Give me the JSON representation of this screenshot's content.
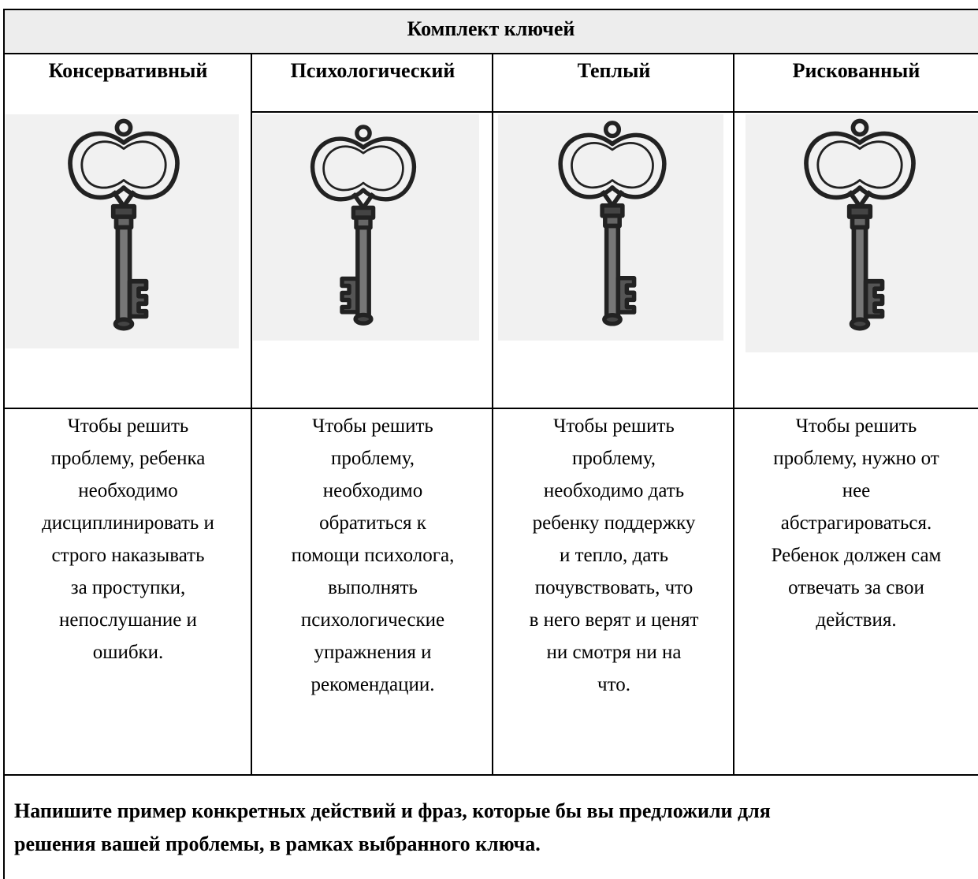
{
  "table": {
    "title": "Комплект ключей",
    "columns": [
      {
        "heading": "Консервативный",
        "lines": [
          "Чтобы решить",
          "проблему, ребенка",
          "необходимо",
          "дисциплинировать и",
          "строго наказывать",
          "за проступки,",
          "непослушание и",
          "ошибки."
        ]
      },
      {
        "heading": "Психологический",
        "lines": [
          "Чтобы решить",
          "проблему,",
          "необходимо",
          "обратиться к",
          "помощи психолога,",
          "выполнять",
          "психологические",
          "упражнения и",
          "рекомендации."
        ]
      },
      {
        "heading": "Теплый",
        "lines": [
          "Чтобы решить",
          "проблему,",
          "необходимо дать",
          "ребенку поддержку",
          "и тепло, дать",
          "почувствовать, что",
          "в него верят и ценят",
          "ни смотря ни на",
          "что."
        ]
      },
      {
        "heading": "Рискованный",
        "lines": [
          "Чтобы решить",
          "проблему, нужно от",
          "нее",
          "абстрагироваться.",
          "Ребенок должен сам",
          "отвечать за свои",
          "действия."
        ]
      }
    ],
    "footer": [
      "Напишите пример конкретных действий и фраз, которые бы вы предложили для",
      "решения вашей проблемы, в рамках выбранного ключа."
    ]
  }
}
